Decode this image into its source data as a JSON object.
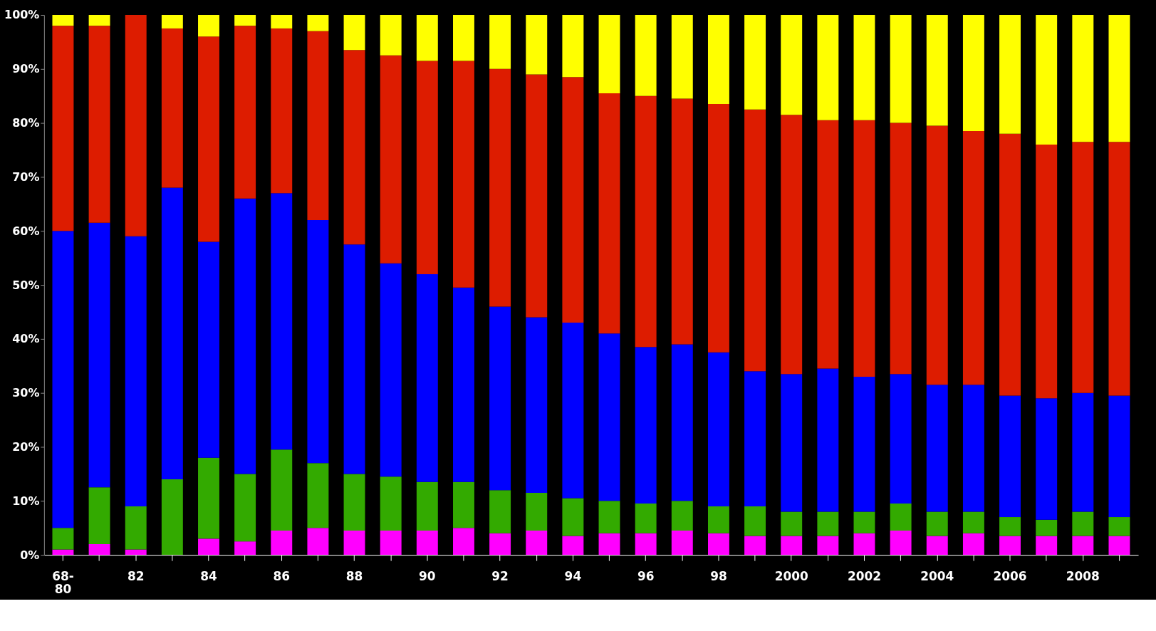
{
  "chart_data": {
    "type": "bar",
    "stacked": true,
    "categories": [
      "68-80",
      null,
      "82",
      null,
      "84",
      null,
      "86",
      null,
      "88",
      null,
      "90",
      null,
      "92",
      null,
      "94",
      null,
      "96",
      null,
      "98",
      null,
      "2000",
      null,
      "2002",
      null,
      "2004",
      null,
      "2006",
      null,
      "2008",
      null
    ],
    "series": [
      {
        "color": "#ff00ff",
        "values": [
          1,
          2,
          1,
          0,
          3,
          2.5,
          4.5,
          5,
          4.5,
          4.5,
          4.5,
          5,
          4,
          4.5,
          3.5,
          4,
          4,
          4.5,
          4,
          3.5,
          3.5,
          3.5,
          4,
          4.5,
          3.5,
          4,
          3.5,
          3.5,
          3.5,
          3.5
        ]
      },
      {
        "color": "#33aa00",
        "values": [
          4,
          10.5,
          8,
          14,
          15,
          12.5,
          15,
          12,
          10.5,
          10,
          9,
          8.5,
          8,
          7,
          7,
          6,
          5.5,
          5.5,
          5,
          5.5,
          4.5,
          4.5,
          4,
          5,
          4.5,
          4,
          3.5,
          3,
          4.5,
          3.5
        ]
      },
      {
        "color": "#0000ff",
        "values": [
          55,
          49,
          50,
          54,
          40,
          51,
          47.5,
          45,
          42.5,
          39.5,
          38.5,
          36,
          34,
          32.5,
          32.5,
          31,
          29,
          29,
          28.5,
          25,
          25.5,
          26.5,
          25,
          24,
          23.5,
          23.5,
          22.5,
          22.5,
          22,
          22.5
        ]
      },
      {
        "color": "#dd1c00",
        "values": [
          38,
          36.5,
          41,
          29.5,
          38,
          32,
          30.5,
          35,
          36,
          38.5,
          39.5,
          42,
          44,
          45,
          45.5,
          44.5,
          46.5,
          45.5,
          46,
          48.5,
          48,
          46,
          47.5,
          46.5,
          48,
          47,
          48.5,
          47,
          46.5,
          47
        ]
      },
      {
        "color": "#ffff00",
        "values": [
          2,
          2,
          0,
          2.5,
          4,
          2,
          2.5,
          3,
          6.5,
          7.5,
          8.5,
          8.5,
          10,
          11,
          11.5,
          14.5,
          15,
          15.5,
          16.5,
          17.5,
          18.5,
          19.5,
          19.5,
          20,
          20.5,
          21.5,
          22,
          24,
          23.5,
          23.5
        ]
      }
    ],
    "ylim": [
      0,
      100
    ],
    "yticks": [
      {
        "value": 0,
        "label": "0%"
      },
      {
        "value": 10,
        "label": "10%"
      },
      {
        "value": 20,
        "label": "20%"
      },
      {
        "value": 30,
        "label": "30%"
      },
      {
        "value": 40,
        "label": "40%"
      },
      {
        "value": 50,
        "label": "50%"
      },
      {
        "value": 60,
        "label": "60%"
      },
      {
        "value": 70,
        "label": "70%"
      },
      {
        "value": 80,
        "label": "80%"
      },
      {
        "value": 90,
        "label": "90%"
      },
      {
        "value": 100,
        "label": "100%"
      }
    ],
    "grid": false
  }
}
